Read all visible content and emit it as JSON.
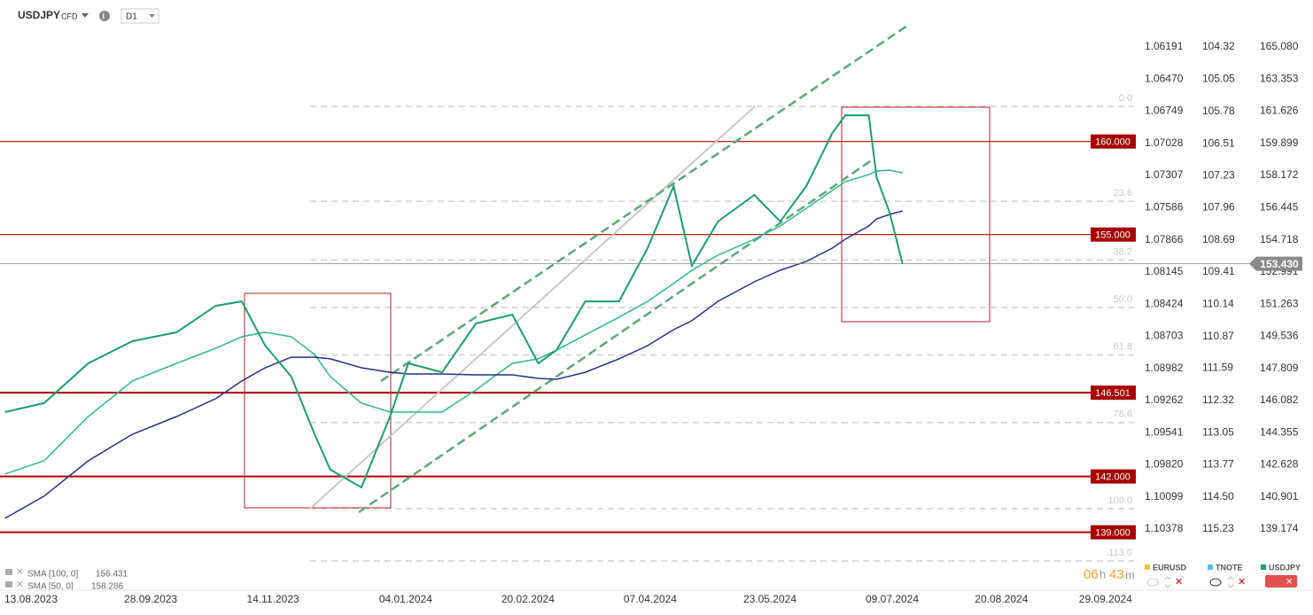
{
  "header": {
    "symbol": "USDJPY",
    "instrument": "CFD",
    "interval": "D1"
  },
  "chart_data": {
    "type": "line",
    "x": [
      "03.08.2023",
      "18.08.2023",
      "04.09.2023",
      "21.09.2023",
      "08.10.2023",
      "23.10.2023",
      "02.11.2023",
      "11.11.2023",
      "21.11.2023",
      "30.11.2023",
      "06.12.2023",
      "18.12.2023",
      "29.12.2023",
      "05.01.2024",
      "18.01.2024",
      "31.01.2024",
      "14.02.2024",
      "24.02.2024",
      "02.03.2024",
      "13.03.2024",
      "26.03.2024",
      "06.04.2024",
      "16.04.2024",
      "23.04.2024",
      "03.05.2024",
      "17.05.2024",
      "27.05.2024",
      "06.06.2024",
      "16.06.2024",
      "21.06.2024",
      "30.06.2024",
      "03.07.2024",
      "08.07.2024",
      "13.07.2024"
    ],
    "series": [
      {
        "name": "USDJPY",
        "color": "#1e9e6e",
        "values": [
          145.46,
          145.94,
          148.08,
          149.27,
          149.75,
          151.17,
          151.41,
          149.03,
          147.37,
          144.27,
          142.37,
          141.41,
          145.22,
          148.08,
          147.6,
          150.22,
          150.7,
          148.08,
          148.79,
          151.41,
          151.41,
          154.27,
          157.6,
          153.32,
          155.7,
          157.13,
          155.7,
          157.6,
          160.46,
          161.41,
          161.41,
          158.08,
          156.18,
          153.43
        ]
      },
      {
        "name": "SMA [100, 0]",
        "last_value": 156.431,
        "color": "#2b2e83",
        "values": [
          139.75,
          140.94,
          142.84,
          144.27,
          145.22,
          146.18,
          147.13,
          147.84,
          148.41,
          148.41,
          148.32,
          147.84,
          147.6,
          147.51,
          147.51,
          147.46,
          147.46,
          147.27,
          147.22,
          147.6,
          148.32,
          149.03,
          149.89,
          150.37,
          151.41,
          152.46,
          153.08,
          153.56,
          154.27,
          154.75,
          155.46,
          155.84,
          156.08,
          156.27
        ]
      },
      {
        "name": "SMA [50, 0]",
        "last_value": 158.286,
        "color": "#2eb88a",
        "values": [
          142.13,
          142.84,
          145.22,
          147.13,
          148.08,
          148.89,
          149.51,
          149.75,
          149.51,
          148.56,
          147.37,
          145.94,
          145.46,
          145.46,
          145.46,
          146.65,
          148.08,
          148.32,
          148.79,
          149.6,
          150.56,
          151.41,
          152.37,
          153.08,
          153.89,
          154.75,
          155.46,
          156.41,
          157.37,
          157.84,
          158.22,
          158.41,
          158.46,
          158.32
        ]
      }
    ],
    "ylim": [
      139.174,
      165.08
    ],
    "yticks": [
      {
        "value": 165.08,
        "label": "165.080"
      },
      163.353,
      161.626,
      159.899,
      158.172,
      156.445,
      154.718,
      152.991,
      151.263,
      149.536,
      147.809,
      146.082,
      144.355,
      142.628,
      140.901,
      139.174
    ],
    "eurusd_ticks": [
      1.06191,
      {
        "value": 1.0647,
        "label": "1.06470"
      },
      1.06749,
      1.07028,
      1.07307,
      1.07586,
      1.07866,
      1.08145,
      1.08424,
      1.08703,
      1.08982,
      1.09262,
      1.09541,
      {
        "value": 1.0982,
        "label": "1.09820"
      },
      1.10099,
      1.10378
    ],
    "tnote_ticks": [
      104.32,
      105.05,
      105.78,
      106.51,
      107.23,
      107.96,
      108.69,
      109.41,
      110.14,
      110.87,
      111.59,
      112.32,
      113.05,
      113.77,
      {
        "value": 114.5,
        "label": "114.50"
      },
      115.23
    ],
    "xticks": [
      "13.08.2023",
      "28.09.2023",
      "14.11.2023",
      "04.01.2024",
      "20.02.2024",
      "07.04.2024",
      "23.05.2024",
      "09.07.2024",
      "20.08.2024",
      "29.09.2024"
    ],
    "levels": [
      {
        "value": 160,
        "label": "160.000"
      },
      {
        "value": 155,
        "label": "155.000"
      },
      {
        "value": 146.501,
        "label": "146.501"
      },
      {
        "value": 142,
        "label": "142.000"
      },
      {
        "value": 139,
        "label": "139.000"
      }
    ],
    "current_price": {
      "value": 153.43,
      "label": "153.430"
    },
    "fibonacci": {
      "high": 161.89,
      "low": 140.27,
      "levels": [
        {
          "value": 0,
          "label": "0.0"
        },
        23.6,
        38.2,
        {
          "value": 50,
          "label": "50.0"
        },
        61.8,
        78.6,
        {
          "value": 100,
          "label": "100.0"
        },
        {
          "value": 113,
          "label": "113.0"
        }
      ]
    }
  },
  "instruments": [
    {
      "name": "EURUSD",
      "color": "#f5c242"
    },
    {
      "name": "TNOTE",
      "color": "#5bb8e8"
    },
    {
      "name": "USDJPY",
      "color": "#1e9e6e"
    }
  ],
  "timer": {
    "hours": "06",
    "hours_unit": "h",
    "minutes": "43",
    "minutes_unit": "m"
  }
}
